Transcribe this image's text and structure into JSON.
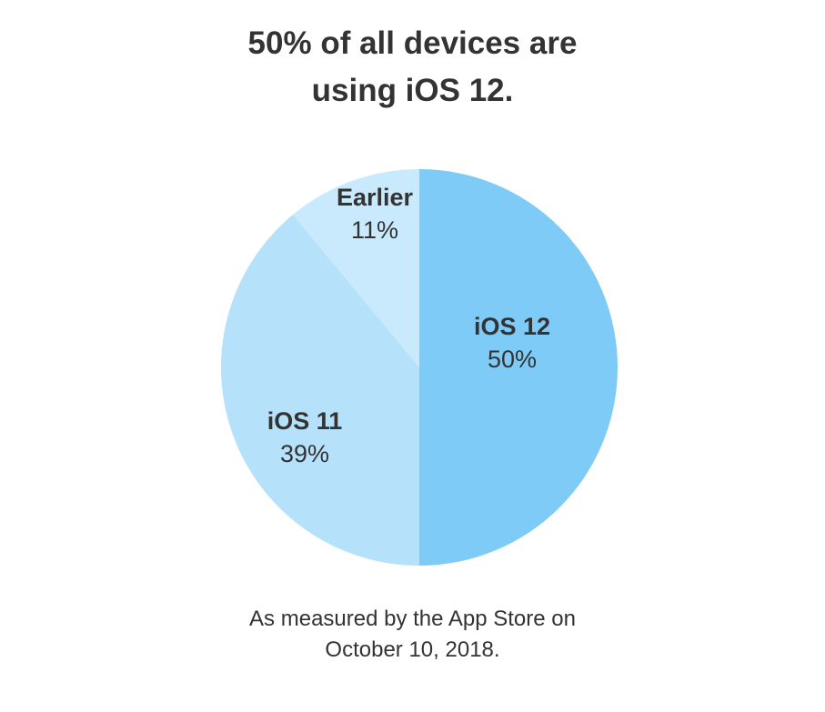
{
  "title": {
    "line1": "50% of all devices are",
    "line2": "using iOS 12."
  },
  "caption": {
    "line1": "As measured by the App Store on",
    "line2": "October 10, 2018."
  },
  "chart_data": {
    "type": "pie",
    "title": "50% of all devices are using iOS 12.",
    "slices": [
      {
        "label": "iOS 12",
        "value": 50,
        "display": "50%",
        "color": "#7ecbf8"
      },
      {
        "label": "iOS 11",
        "value": 39,
        "display": "39%",
        "color": "#b5e1fb"
      },
      {
        "label": "Earlier",
        "value": 11,
        "display": "11%",
        "color": "#c9e9fc"
      }
    ],
    "start": "top",
    "direction": "clockwise",
    "label_color": "#333333"
  }
}
